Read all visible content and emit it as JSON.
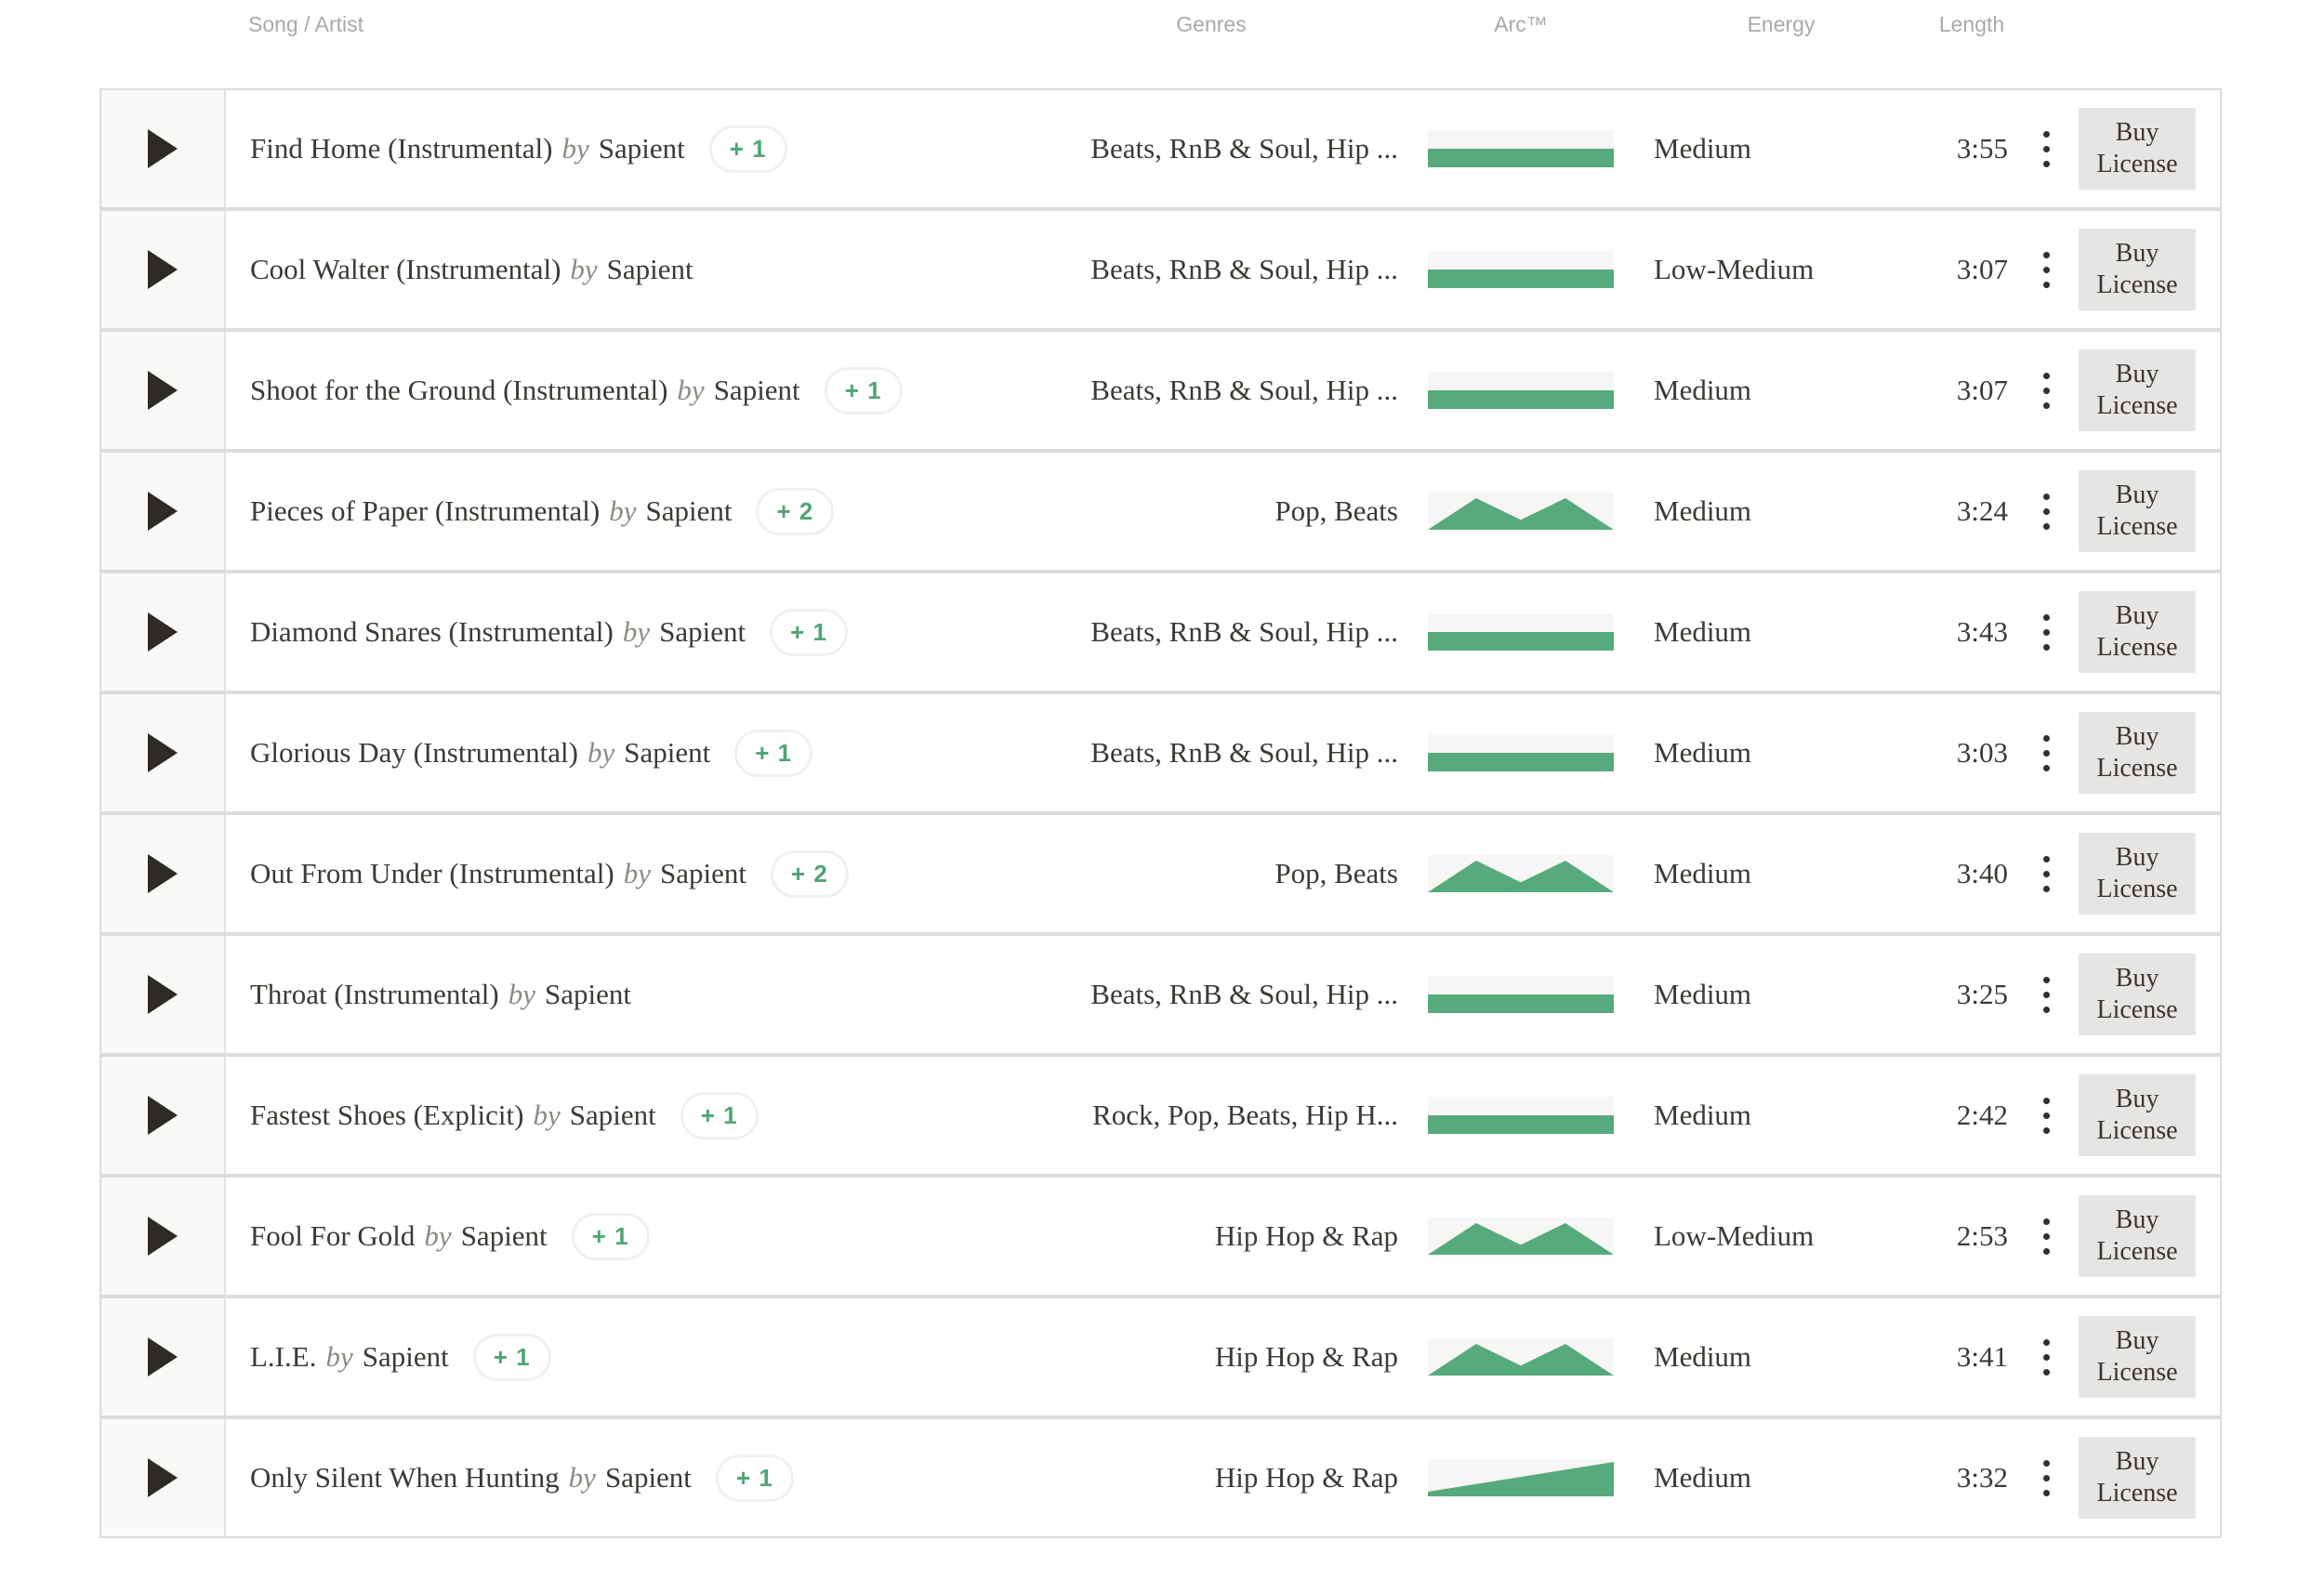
{
  "header": {
    "song_artist": "Song / Artist",
    "genres": "Genres",
    "arc": "Arc™",
    "energy": "Energy",
    "length": "Length"
  },
  "buy_button": {
    "line1": "Buy",
    "line2": "License"
  },
  "icons": {
    "play": "play-triangle-icon",
    "more_options": "kebab-vertical-dots-icon"
  },
  "colors": {
    "arc_green": "#57aa7b",
    "arc_background": "#f6f6f4",
    "badge_green": "#50a573",
    "row_border": "#dcdcdc",
    "play_cell_background": "#f9f9f8",
    "buy_button_background": "#e6e5e4",
    "header_text": "#a9a9a9",
    "body_text": "#3d3934"
  },
  "rows": [
    {
      "title": "Find Home (Instrumental)",
      "by": "by",
      "artist": "Sapient",
      "badge": "+ 1",
      "genres": "Beats, RnB & Soul, Hip ...",
      "arc": "steady",
      "energy": "Medium",
      "length": "3:55"
    },
    {
      "title": "Cool Walter (Instrumental)",
      "by": "by",
      "artist": "Sapient",
      "badge": "",
      "genres": "Beats, RnB & Soul, Hip ...",
      "arc": "steady",
      "energy": "Low-Medium",
      "length": "3:07"
    },
    {
      "title": "Shoot for the Ground (Instrumental)",
      "by": "by",
      "artist": "Sapient",
      "badge": "+ 1",
      "genres": "Beats, RnB & Soul, Hip ...",
      "arc": "steady",
      "energy": "Medium",
      "length": "3:07"
    },
    {
      "title": "Pieces of Paper (Instrumental)",
      "by": "by",
      "artist": "Sapient",
      "badge": "+ 2",
      "genres": "Pop, Beats",
      "arc": "two-peaks",
      "energy": "Medium",
      "length": "3:24"
    },
    {
      "title": "Diamond Snares (Instrumental)",
      "by": "by",
      "artist": "Sapient",
      "badge": "+ 1",
      "genres": "Beats, RnB & Soul, Hip ...",
      "arc": "steady",
      "energy": "Medium",
      "length": "3:43"
    },
    {
      "title": "Glorious Day (Instrumental)",
      "by": "by",
      "artist": "Sapient",
      "badge": "+ 1",
      "genres": "Beats, RnB & Soul, Hip ...",
      "arc": "steady",
      "energy": "Medium",
      "length": "3:03"
    },
    {
      "title": "Out From Under (Instrumental)",
      "by": "by",
      "artist": "Sapient",
      "badge": "+ 2",
      "genres": "Pop, Beats",
      "arc": "two-peaks",
      "energy": "Medium",
      "length": "3:40"
    },
    {
      "title": "Throat (Instrumental)",
      "by": "by",
      "artist": "Sapient",
      "badge": "",
      "genres": "Beats, RnB & Soul, Hip ...",
      "arc": "steady",
      "energy": "Medium",
      "length": "3:25"
    },
    {
      "title": "Fastest Shoes (Explicit)",
      "by": "by",
      "artist": "Sapient",
      "badge": "+ 1",
      "genres": "Rock, Pop, Beats, Hip H...",
      "arc": "steady",
      "energy": "Medium",
      "length": "2:42"
    },
    {
      "title": "Fool For Gold",
      "by": "by",
      "artist": "Sapient",
      "badge": "+ 1",
      "genres": "Hip Hop & Rap",
      "arc": "two-peaks",
      "energy": "Low-Medium",
      "length": "2:53"
    },
    {
      "title": "L.I.E.",
      "by": "by",
      "artist": "Sapient",
      "badge": "+ 1",
      "genres": "Hip Hop & Rap",
      "arc": "two-peaks",
      "energy": "Medium",
      "length": "3:41"
    },
    {
      "title": "Only Silent When Hunting",
      "by": "by",
      "artist": "Sapient",
      "badge": "+ 1",
      "genres": "Hip Hop & Rap",
      "arc": "rising",
      "energy": "Medium",
      "length": "3:32"
    }
  ]
}
